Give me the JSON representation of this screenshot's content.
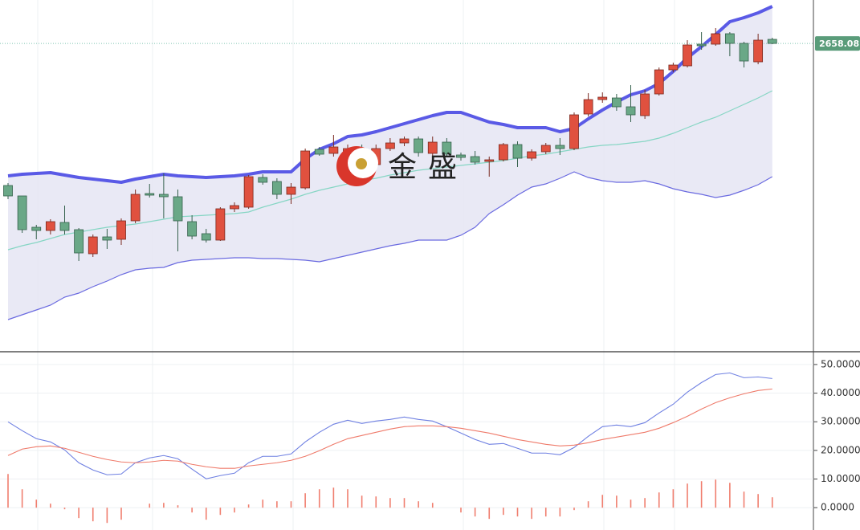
{
  "chart_data": [
    {
      "type": "candlestick",
      "watermark": "金盛",
      "last_price": 2658.08,
      "ylim": [
        2562.35,
        2671.6
      ],
      "up_color": "#e0513f",
      "down_color": "#6aa887",
      "open": [
        2613.85,
        2610.6,
        2600.85,
        2599.85,
        2602.35,
        2600.1,
        2592.6,
        2597.85,
        2597.1,
        2602.85,
        2611.35,
        2611.1,
        2610.35,
        2602.6,
        2598.85,
        2596.85,
        2606.6,
        2607.1,
        2616.35,
        2615.1,
        2611.1,
        2613.1,
        2625.1,
        2623.85,
        2623.35,
        2625.35,
        2620.35,
        2625.35,
        2627.1,
        2628.35,
        2623.85,
        2627.35,
        2623.35,
        2622.85,
        2621.35,
        2621.85,
        2626.6,
        2622.35,
        2624.35,
        2626.35,
        2625.35,
        2636.1,
        2640.6,
        2641.1,
        2638.35,
        2635.6,
        2642.35,
        2649.85,
        2651.1,
        2657.85,
        2657.85,
        2661.1,
        2658.1,
        2652.35,
        2659.35
      ],
      "high": [
        2614.6,
        2610.6,
        2601.6,
        2603.35,
        2607.6,
        2600.6,
        2598.6,
        2600.35,
        2603.6,
        2612.6,
        2614.35,
        2617.6,
        2612.6,
        2604.6,
        2600.35,
        2607.1,
        2608.6,
        2617.1,
        2617.35,
        2616.1,
        2614.6,
        2625.35,
        2625.85,
        2629.6,
        2626.6,
        2626.6,
        2626.6,
        2628.6,
        2629.1,
        2629.1,
        2629.1,
        2628.6,
        2624.1,
        2624.6,
        2622.85,
        2627.1,
        2627.6,
        2625.1,
        2627.1,
        2628.6,
        2636.6,
        2642.6,
        2642.85,
        2642.35,
        2645.1,
        2643.6,
        2650.6,
        2652.1,
        2659.1,
        2661.6,
        2662.85,
        2661.6,
        2658.6,
        2661.1,
        2659.85
      ],
      "low": [
        2609.6,
        2599.1,
        2597.1,
        2598.6,
        2598.6,
        2590.35,
        2591.6,
        2594.1,
        2595.35,
        2602.1,
        2610.1,
        2603.6,
        2593.35,
        2597.1,
        2596.1,
        2596.6,
        2605.6,
        2606.6,
        2614.1,
        2609.6,
        2608.1,
        2612.6,
        2623.1,
        2622.85,
        2622.1,
        2622.1,
        2619.1,
        2624.6,
        2626.1,
        2622.85,
        2623.1,
        2622.85,
        2621.6,
        2620.35,
        2616.6,
        2621.35,
        2619.6,
        2621.6,
        2623.6,
        2623.35,
        2624.85,
        2635.35,
        2639.6,
        2637.1,
        2633.6,
        2634.6,
        2641.85,
        2649.1,
        2650.6,
        2656.1,
        2657.35,
        2654.1,
        2650.6,
        2651.6,
        2657.85
      ],
      "close": [
        2610.6,
        2600.1,
        2599.85,
        2602.6,
        2599.85,
        2592.85,
        2597.85,
        2596.85,
        2602.85,
        2611.1,
        2610.85,
        2610.35,
        2602.85,
        2598.1,
        2596.85,
        2606.6,
        2607.6,
        2616.6,
        2614.85,
        2611.1,
        2613.35,
        2624.6,
        2623.6,
        2625.85,
        2625.35,
        2622.85,
        2625.35,
        2627.1,
        2628.35,
        2624.1,
        2627.35,
        2623.6,
        2622.6,
        2621.1,
        2621.85,
        2626.6,
        2622.35,
        2624.35,
        2626.35,
        2625.35,
        2635.85,
        2640.6,
        2641.35,
        2638.35,
        2635.85,
        2642.35,
        2649.85,
        2651.35,
        2657.6,
        2657.35,
        2661.1,
        2658.1,
        2652.6,
        2659.1,
        2658.08
      ],
      "bands": {
        "fill": "#e7e7f4",
        "upper": {
          "color": "#5a5ae6",
          "values": [
            2616.85,
            2617.35,
            2617.6,
            2617.85,
            2617.1,
            2616.35,
            2615.85,
            2615.35,
            2614.85,
            2615.85,
            2616.6,
            2617.35,
            2616.85,
            2616.6,
            2616.35,
            2616.6,
            2616.85,
            2617.35,
            2618.1,
            2618.1,
            2618.1,
            2622.1,
            2625.1,
            2626.85,
            2629.1,
            2629.6,
            2630.6,
            2631.85,
            2633.1,
            2634.35,
            2635.6,
            2636.6,
            2636.6,
            2635.1,
            2633.6,
            2632.85,
            2631.85,
            2631.85,
            2631.85,
            2630.6,
            2631.6,
            2634.6,
            2637.35,
            2639.85,
            2642.1,
            2643.35,
            2645.6,
            2649.35,
            2653.6,
            2657.1,
            2660.85,
            2664.85,
            2666.1,
            2667.6,
            2669.6
          ]
        },
        "middle": {
          "color": "#86d6c4",
          "values": [
            2593.85,
            2595.1,
            2596.1,
            2597.35,
            2598.6,
            2599.35,
            2600.1,
            2600.85,
            2601.35,
            2601.85,
            2602.6,
            2603.35,
            2604.1,
            2604.35,
            2604.6,
            2604.85,
            2605.1,
            2605.6,
            2607.1,
            2608.35,
            2609.6,
            2611.1,
            2612.35,
            2613.35,
            2614.35,
            2615.35,
            2616.1,
            2617.1,
            2617.85,
            2618.6,
            2619.1,
            2619.6,
            2620.1,
            2620.6,
            2621.1,
            2621.6,
            2622.35,
            2623.1,
            2623.6,
            2624.35,
            2625.1,
            2625.85,
            2626.35,
            2626.6,
            2627.1,
            2627.6,
            2628.6,
            2630.1,
            2631.85,
            2633.6,
            2635.1,
            2637.1,
            2639.1,
            2641.1,
            2643.35
          ]
        },
        "lower": {
          "color": "#6a6ae0",
          "values": [
            2572.1,
            2573.6,
            2575.1,
            2576.6,
            2579.1,
            2580.35,
            2582.35,
            2584.1,
            2586.1,
            2587.6,
            2588.1,
            2588.35,
            2589.85,
            2590.6,
            2590.85,
            2591.1,
            2591.35,
            2591.35,
            2591.1,
            2591.1,
            2590.85,
            2590.6,
            2590.1,
            2591.1,
            2592.1,
            2593.1,
            2594.1,
            2595.1,
            2595.85,
            2596.85,
            2596.85,
            2596.85,
            2598.35,
            2600.85,
            2605.1,
            2607.85,
            2610.85,
            2613.35,
            2614.35,
            2616.1,
            2618.1,
            2616.35,
            2615.35,
            2614.85,
            2614.85,
            2615.35,
            2614.35,
            2612.85,
            2611.85,
            2611.1,
            2610.1,
            2610.85,
            2612.35,
            2614.1,
            2616.6
          ]
        }
      }
    },
    {
      "type": "line",
      "ylim": [
        -7.8,
        53.9
      ],
      "grid": true,
      "yticks": [
        {
          "value": 50,
          "label": "50.0000"
        },
        {
          "value": 40,
          "label": "40.0000"
        },
        {
          "value": 30,
          "label": "30.0000"
        },
        {
          "value": 20,
          "label": "20.0000"
        },
        {
          "value": 10,
          "label": "10.0000"
        },
        {
          "value": 0,
          "label": "0.0000"
        }
      ],
      "series": [
        {
          "color": "#6f80e2",
          "values": [
            29.97,
            26.89,
            24.09,
            22.97,
            20.17,
            15.69,
            13.17,
            11.48,
            11.76,
            15.69,
            17.37,
            18.21,
            17.09,
            13.45,
            10.08,
            11.2,
            12.04,
            15.69,
            17.93,
            17.93,
            18.77,
            22.97,
            26.33,
            29.13,
            30.53,
            29.41,
            30.25,
            30.81,
            31.65,
            30.81,
            30.25,
            28.29,
            26.05,
            23.81,
            22.13,
            22.41,
            20.73,
            19.05,
            19.05,
            18.49,
            21.01,
            24.93,
            28.29,
            28.85,
            28.29,
            29.69,
            33.05,
            36.13,
            40.34,
            43.7,
            46.5,
            47.06,
            45.38,
            45.66,
            45.1
          ]
        },
        {
          "color": "#ef7b6b",
          "values": [
            18.21,
            20.45,
            21.29,
            21.57,
            20.73,
            19.33,
            17.93,
            16.81,
            15.97,
            15.69,
            15.97,
            16.53,
            16.25,
            15.13,
            14.29,
            13.73,
            13.73,
            14.57,
            15.13,
            15.69,
            16.53,
            17.93,
            19.89,
            22.13,
            24.09,
            25.21,
            26.33,
            27.45,
            28.29,
            28.57,
            28.57,
            28.29,
            27.73,
            26.89,
            26.05,
            24.93,
            23.81,
            22.97,
            22.13,
            21.57,
            21.85,
            22.69,
            23.81,
            24.65,
            25.49,
            26.33,
            27.73,
            29.69,
            31.93,
            34.45,
            36.69,
            38.38,
            39.78,
            40.9,
            41.46
          ]
        },
        {
          "type": "bar",
          "color": "#f07e6e",
          "values": [
            11.76,
            6.44,
            2.8,
            1.4,
            -0.56,
            -3.64,
            -4.76,
            -5.33,
            -4.21,
            0,
            1.4,
            1.68,
            0.84,
            -1.68,
            -4.21,
            -2.53,
            -1.69,
            1.12,
            2.8,
            2.24,
            2.24,
            5.04,
            6.44,
            7.0,
            6.44,
            4.2,
            3.92,
            3.36,
            3.36,
            2.24,
            1.68,
            0,
            -1.68,
            -3.08,
            -3.92,
            -2.52,
            -3.08,
            -3.92,
            -3.08,
            -3.08,
            -0.84,
            2.24,
            4.48,
            4.2,
            2.8,
            3.36,
            5.32,
            6.44,
            8.41,
            9.25,
            9.81,
            8.68,
            5.6,
            4.76,
            3.64
          ]
        }
      ]
    }
  ]
}
